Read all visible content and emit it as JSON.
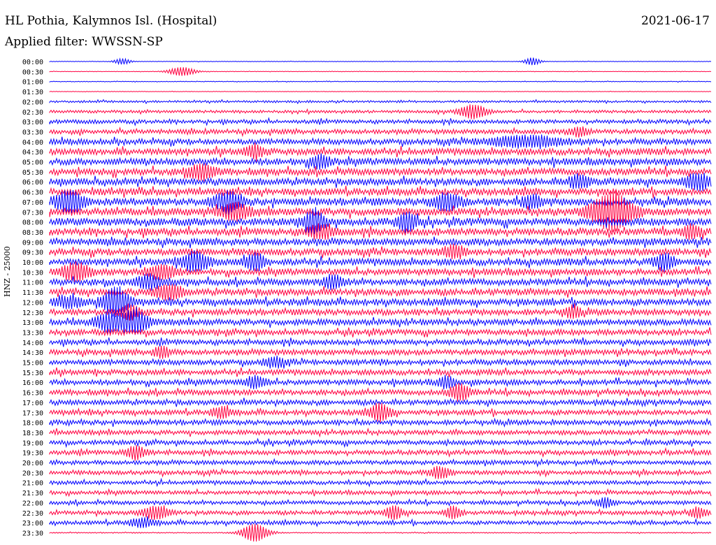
{
  "header": {
    "station": "HL Pothia, Kalymnos Isl. (Hospital)",
    "date": "2021-06-17",
    "filter": "Applied filter: WWSSN-SP"
  },
  "chart_data": {
    "type": "line",
    "title": "HL Pothia, Kalymnos Isl. (Hospital)",
    "ylabel": "HNZ - 25000",
    "colors": [
      "#0000ff",
      "#ff0040"
    ],
    "row_labels": [
      "00:00",
      "00:30",
      "01:00",
      "01:30",
      "02:00",
      "02:30",
      "03:00",
      "03:30",
      "04:00",
      "04:30",
      "05:00",
      "05:30",
      "06:00",
      "06:30",
      "07:00",
      "07:30",
      "08:00",
      "08:30",
      "09:00",
      "09:30",
      "10:00",
      "10:30",
      "11:00",
      "11:30",
      "12:00",
      "12:30",
      "13:00",
      "13:30",
      "14:00",
      "14:30",
      "15:00",
      "15:30",
      "16:00",
      "16:30",
      "17:00",
      "17:30",
      "18:00",
      "18:30",
      "19:00",
      "19:30",
      "20:00",
      "20:30",
      "21:00",
      "21:30",
      "22:00",
      "22:30",
      "23:00",
      "23:30"
    ],
    "noise_level": [
      0.3,
      0.3,
      0.4,
      0.3,
      1.2,
      1.6,
      2.2,
      2.6,
      3.2,
      3.6,
      3.8,
      3.8,
      3.8,
      3.8,
      4.2,
      4.2,
      4.2,
      4.0,
      3.8,
      3.8,
      3.8,
      3.6,
      3.6,
      3.6,
      3.6,
      3.4,
      3.4,
      3.2,
      3.0,
      3.0,
      3.0,
      3.0,
      3.0,
      3.0,
      2.8,
      2.8,
      2.8,
      2.6,
      2.6,
      2.6,
      2.4,
      2.4,
      2.2,
      2.2,
      2.2,
      2.2,
      2.2,
      0.6
    ],
    "events": [
      {
        "row": 0,
        "x": 0.11,
        "amp": 4,
        "width": 0.012
      },
      {
        "row": 0,
        "x": 0.73,
        "amp": 5,
        "width": 0.012
      },
      {
        "row": 1,
        "x": 0.2,
        "amp": 6,
        "width": 0.02
      },
      {
        "row": 5,
        "x": 0.64,
        "amp": 9,
        "width": 0.02
      },
      {
        "row": 7,
        "x": 0.8,
        "amp": 5,
        "width": 0.015
      },
      {
        "row": 8,
        "x": 0.72,
        "amp": 6,
        "width": 0.06
      },
      {
        "row": 9,
        "x": 0.31,
        "amp": 7,
        "width": 0.015
      },
      {
        "row": 10,
        "x": 0.41,
        "amp": 8,
        "width": 0.015
      },
      {
        "row": 11,
        "x": 0.23,
        "amp": 9,
        "width": 0.02
      },
      {
        "row": 12,
        "x": 0.98,
        "amp": 10,
        "width": 0.02
      },
      {
        "row": 12,
        "x": 0.8,
        "amp": 8,
        "width": 0.015
      },
      {
        "row": 14,
        "x": 0.03,
        "amp": 14,
        "width": 0.02
      },
      {
        "row": 14,
        "x": 0.27,
        "amp": 12,
        "width": 0.02
      },
      {
        "row": 14,
        "x": 0.6,
        "amp": 10,
        "width": 0.02
      },
      {
        "row": 14,
        "x": 0.73,
        "amp": 8,
        "width": 0.015
      },
      {
        "row": 15,
        "x": 0.85,
        "amp": 24,
        "width": 0.03
      },
      {
        "row": 15,
        "x": 0.28,
        "amp": 10,
        "width": 0.02
      },
      {
        "row": 16,
        "x": 0.4,
        "amp": 14,
        "width": 0.015
      },
      {
        "row": 16,
        "x": 0.54,
        "amp": 12,
        "width": 0.015
      },
      {
        "row": 17,
        "x": 0.41,
        "amp": 8,
        "width": 0.02
      },
      {
        "row": 17,
        "x": 0.97,
        "amp": 8,
        "width": 0.015
      },
      {
        "row": 19,
        "x": 0.61,
        "amp": 7,
        "width": 0.015
      },
      {
        "row": 20,
        "x": 0.22,
        "amp": 12,
        "width": 0.02
      },
      {
        "row": 20,
        "x": 0.31,
        "amp": 10,
        "width": 0.015
      },
      {
        "row": 20,
        "x": 0.93,
        "amp": 10,
        "width": 0.015
      },
      {
        "row": 21,
        "x": 0.04,
        "amp": 11,
        "width": 0.02
      },
      {
        "row": 21,
        "x": 0.17,
        "amp": 9,
        "width": 0.02
      },
      {
        "row": 22,
        "x": 0.15,
        "amp": 8,
        "width": 0.02
      },
      {
        "row": 22,
        "x": 0.43,
        "amp": 8,
        "width": 0.015
      },
      {
        "row": 23,
        "x": 0.18,
        "amp": 9,
        "width": 0.02
      },
      {
        "row": 24,
        "x": 0.1,
        "amp": 18,
        "width": 0.02
      },
      {
        "row": 24,
        "x": 0.03,
        "amp": 6,
        "width": 0.02
      },
      {
        "row": 25,
        "x": 0.12,
        "amp": 8,
        "width": 0.015
      },
      {
        "row": 25,
        "x": 0.79,
        "amp": 7,
        "width": 0.012
      },
      {
        "row": 26,
        "x": 0.09,
        "amp": 12,
        "width": 0.02
      },
      {
        "row": 26,
        "x": 0.13,
        "amp": 14,
        "width": 0.02
      },
      {
        "row": 29,
        "x": 0.17,
        "amp": 7,
        "width": 0.012
      },
      {
        "row": 30,
        "x": 0.34,
        "amp": 6,
        "width": 0.015
      },
      {
        "row": 32,
        "x": 0.31,
        "amp": 7,
        "width": 0.015
      },
      {
        "row": 32,
        "x": 0.6,
        "amp": 7,
        "width": 0.012
      },
      {
        "row": 33,
        "x": 0.62,
        "amp": 10,
        "width": 0.015
      },
      {
        "row": 35,
        "x": 0.5,
        "amp": 11,
        "width": 0.015
      },
      {
        "row": 35,
        "x": 0.26,
        "amp": 6,
        "width": 0.015
      },
      {
        "row": 39,
        "x": 0.13,
        "amp": 8,
        "width": 0.015
      },
      {
        "row": 41,
        "x": 0.59,
        "amp": 7,
        "width": 0.015
      },
      {
        "row": 44,
        "x": 0.84,
        "amp": 6,
        "width": 0.012
      },
      {
        "row": 45,
        "x": 0.16,
        "amp": 8,
        "width": 0.02
      },
      {
        "row": 45,
        "x": 0.52,
        "amp": 9,
        "width": 0.012
      },
      {
        "row": 45,
        "x": 0.61,
        "amp": 8,
        "width": 0.012
      },
      {
        "row": 45,
        "x": 0.98,
        "amp": 7,
        "width": 0.012
      },
      {
        "row": 46,
        "x": 0.14,
        "amp": 5,
        "width": 0.02
      },
      {
        "row": 47,
        "x": 0.31,
        "amp": 12,
        "width": 0.02
      }
    ]
  }
}
